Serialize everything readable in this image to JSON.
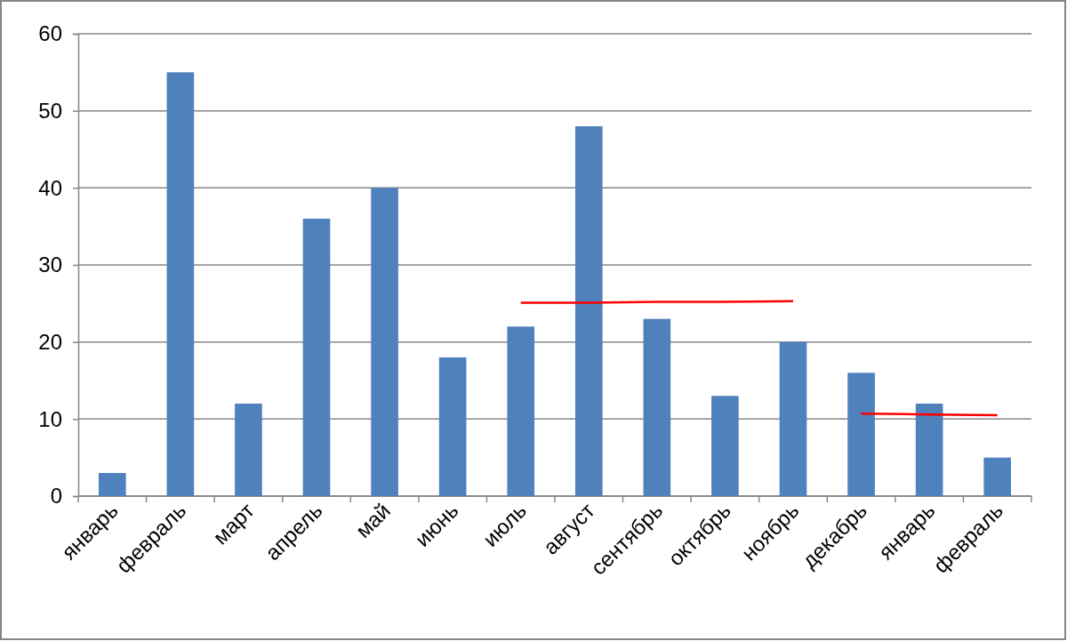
{
  "chart_data": {
    "type": "bar",
    "categories": [
      "январь",
      "февраль",
      "март",
      "апрель",
      "май",
      "июнь",
      "июль",
      "август",
      "сентябрь",
      "октябрь",
      "ноябрь",
      "декабрь",
      "январь",
      "февраль"
    ],
    "series": [
      {
        "color": "#4f81bd",
        "values": [
          3,
          55,
          12,
          36,
          40,
          18,
          22,
          48,
          23,
          13,
          20,
          16,
          12,
          5
        ]
      },
      {
        "type": "line",
        "color": "#ff0000",
        "values": [
          null,
          null,
          null,
          null,
          null,
          null,
          25.1,
          25.1,
          25.2,
          25.2,
          25.3,
          null,
          null,
          null
        ]
      },
      {
        "type": "line",
        "color": "#ff0000",
        "values": [
          null,
          null,
          null,
          null,
          null,
          null,
          null,
          null,
          null,
          null,
          null,
          10.7,
          10.6,
          10.5
        ]
      }
    ],
    "ylim": [
      0,
      60
    ],
    "yticks": [
      0,
      10,
      20,
      30,
      40,
      50,
      60
    ],
    "grid": "y",
    "marker": "none",
    "line_style": "solid"
  }
}
